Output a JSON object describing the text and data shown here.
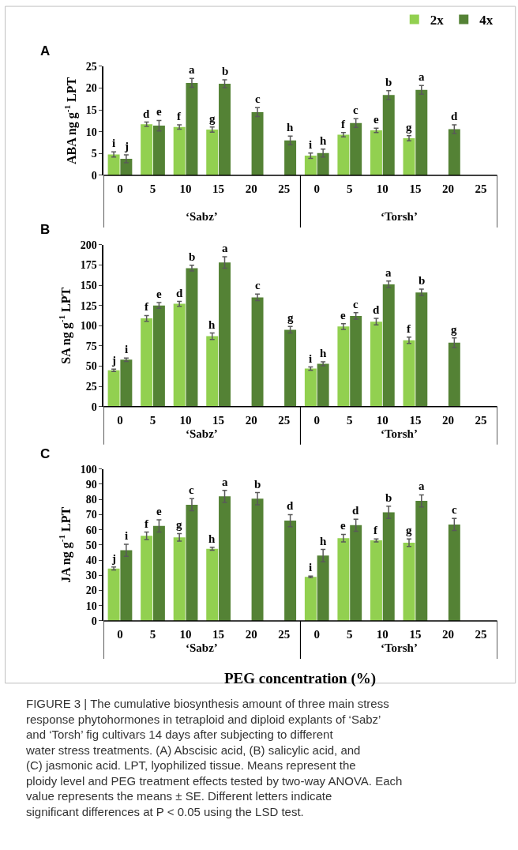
{
  "chart_data": [
    {
      "type": "bar",
      "title": "A",
      "ylabel": "ABA ng g$^{-1}$ LPT",
      "categories": [
        "0",
        "5",
        "10",
        "15",
        "20",
        "25",
        "0",
        "5",
        "10",
        "15",
        "20",
        "25"
      ],
      "series": [
        {
          "name": "2x",
          "color": "#92d050",
          "values": [
            4.8,
            11.7,
            11.1,
            10.5,
            null,
            null,
            4.5,
            9.3,
            10.3,
            8.5,
            null,
            null
          ],
          "errors": [
            0.6,
            0.5,
            0.5,
            0.6,
            null,
            null,
            0.6,
            0.5,
            0.5,
            0.6,
            null,
            null
          ],
          "value_labels": [
            "i",
            "d",
            "f",
            "g",
            null,
            null,
            "i",
            "f",
            "e",
            "g",
            null,
            null
          ]
        },
        {
          "name": "4x",
          "color": "#548235",
          "values": [
            3.8,
            11.4,
            21.2,
            21.0,
            14.5,
            8.0,
            5.1,
            12.0,
            18.4,
            19.6,
            10.6,
            null
          ],
          "errors": [
            0.9,
            1.2,
            1.0,
            0.9,
            1.0,
            1.0,
            0.9,
            1.0,
            1.0,
            1.0,
            1.0,
            null
          ],
          "value_labels": [
            "j",
            "e",
            "a",
            "b",
            "c",
            "h",
            "h",
            "c",
            "b",
            "a",
            "d",
            null
          ]
        }
      ],
      "ylim": [
        0,
        25
      ],
      "yticks": [
        0,
        5,
        10,
        15,
        20,
        25
      ],
      "grid": false,
      "legend": "top right",
      "annotations": [
        "‘Sabz’",
        "‘Torsh’"
      ]
    },
    {
      "type": "bar",
      "title": "B",
      "ylabel": "SA ng g$^{-1}$ LPT",
      "categories": [
        "0",
        "5",
        "10",
        "15",
        "20",
        "25",
        "0",
        "5",
        "10",
        "15",
        "20",
        "25"
      ],
      "series": [
        {
          "color": "#92d050",
          "values": [
            45,
            109,
            127,
            87,
            null,
            null,
            47,
            99,
            105,
            82,
            null,
            null
          ],
          "errors": [
            1.5,
            3.5,
            3,
            4,
            null,
            null,
            2,
            3.5,
            4,
            4,
            null,
            null
          ],
          "value_labels": [
            "j",
            "f",
            "d",
            "h",
            null,
            null,
            "i",
            "e",
            "d",
            "f",
            null,
            null
          ]
        },
        {
          "color": "#548235",
          "values": [
            58,
            125,
            171,
            178,
            135,
            95,
            53,
            112,
            151,
            141,
            79,
            null
          ],
          "errors": [
            2,
            3.5,
            3.5,
            7,
            4,
            4,
            2.5,
            4,
            4,
            4,
            6,
            null
          ],
          "value_labels": [
            "i",
            "e",
            "b",
            "a",
            "c",
            "g",
            "h",
            "c",
            "a",
            "b",
            "g",
            null
          ]
        }
      ],
      "ylim": [
        0,
        200
      ],
      "yticks": [
        0,
        25,
        50,
        75,
        100,
        125,
        150,
        175,
        200
      ],
      "grid": false,
      "annotations": [
        "‘Sabz’",
        "‘Torsh’"
      ]
    },
    {
      "type": "bar",
      "title": "C",
      "ylabel": "JA ng g$^{-1}$ LPT",
      "xlabel": "PEG concentration (%)",
      "categories": [
        "0",
        "5",
        "10",
        "15",
        "20",
        "25",
        "0",
        "5",
        "10",
        "15",
        "20",
        "25"
      ],
      "series": [
        {
          "color": "#92d050",
          "values": [
            34.5,
            56,
            55,
            47.5,
            null,
            null,
            29,
            54.5,
            53,
            51.5,
            null,
            null
          ],
          "errors": [
            1,
            2.5,
            2.5,
            1,
            null,
            null,
            0.5,
            2.5,
            1,
            2.5,
            null,
            null
          ],
          "value_labels": [
            "j",
            "f",
            "g",
            "h",
            null,
            null,
            "i",
            "e",
            "f",
            "g",
            null,
            null
          ]
        },
        {
          "color": "#548235",
          "values": [
            46.5,
            62.5,
            76.5,
            82,
            80.5,
            66,
            43,
            63,
            71.5,
            79,
            63.5,
            null
          ],
          "errors": [
            4,
            4,
            4,
            4,
            4,
            4,
            4,
            4,
            4,
            4,
            4,
            null
          ],
          "value_labels": [
            "i",
            "e",
            "c",
            "a",
            "b",
            "d",
            "h",
            "d",
            "b",
            "a",
            "c",
            null
          ]
        }
      ],
      "ylim": [
        0,
        100
      ],
      "yticks": [
        0,
        10,
        20,
        30,
        40,
        50,
        60,
        70,
        80,
        90,
        100
      ],
      "grid": false,
      "annotations": [
        "‘Sabz’",
        "‘Torsh’",
        "FIGURE 3 | The cumulative biosynthesis amount of three main stress response phytohormones in tetraploid and diploid explants of ‘Sabz’ and ‘Torsh’ fig cultivars 14 days after subjecting to different water stress treatments. (A) Abscisic acid, (B) salicylic acid, and (C) jasmonic acid. LPT, lyophilized tissue. Means represent the ploidy level and PEG treatment effects tested by two-way ANOVA. Each value represents the means ± SE. Different letters indicate significant differences at P < 0.05 using the LSD test."
      ]
    }
  ]
}
